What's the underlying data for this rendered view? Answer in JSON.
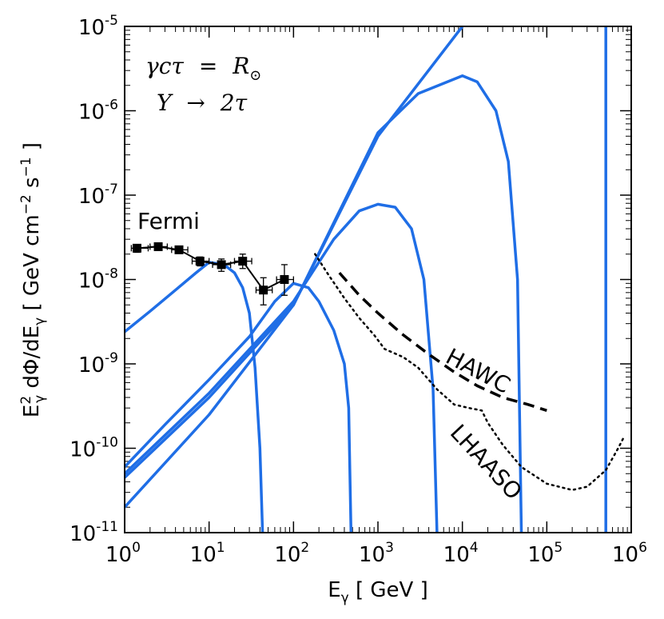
{
  "chart_data": {
    "type": "line",
    "title": "",
    "xlabel": "E_γ [ GeV ]",
    "ylabel": "E²_γ dΦ/dE_γ [ GeV cm⁻² s⁻¹ ]",
    "xscale": "log",
    "yscale": "log",
    "xlim": [
      1,
      1000000
    ],
    "ylim": [
      1e-11,
      1e-05
    ],
    "x_tick_exponents": [
      "0",
      "1",
      "2",
      "3",
      "4",
      "5",
      "6"
    ],
    "y_tick_exponents": [
      "-11",
      "-10",
      "-9",
      "-8",
      "-7",
      "-6",
      "-5"
    ],
    "tick_base": "10",
    "annotations": {
      "line1": {
        "lhs": "γcτ",
        "eq": "=",
        "rhs": "R",
        "sub": "⊙"
      },
      "line2": {
        "lhs": "Y",
        "arrow": "→",
        "rhs": "2τ"
      }
    },
    "labels": {
      "fermi": "Fermi",
      "hawc": "HAWC",
      "lhaaso": "LHAASO"
    },
    "colors": {
      "model": "#1f6ee6",
      "data": "#000000",
      "sensitivity": "#000000"
    },
    "model_series": [
      {
        "name": "model-50GeV",
        "points": [
          [
            1,
            2.4e-09
          ],
          [
            2,
            4.2e-09
          ],
          [
            4,
            7.5e-09
          ],
          [
            7,
            1.2e-08
          ],
          [
            10,
            1.6e-08
          ],
          [
            15,
            1.5e-08
          ],
          [
            20,
            1.2e-08
          ],
          [
            25,
            8e-09
          ],
          [
            30,
            4e-09
          ],
          [
            35,
            9e-10
          ],
          [
            40,
            1e-10
          ],
          [
            43,
            1e-11
          ]
        ]
      },
      {
        "name": "model-500GeV",
        "points": [
          [
            1,
            6e-11
          ],
          [
            3,
            1.9e-10
          ],
          [
            10,
            6.5e-10
          ],
          [
            30,
            2.1e-09
          ],
          [
            60,
            5.5e-09
          ],
          [
            100,
            9e-09
          ],
          [
            150,
            8e-09
          ],
          [
            200,
            5.5e-09
          ],
          [
            300,
            2.5e-09
          ],
          [
            400,
            1e-09
          ],
          [
            450,
            3e-10
          ],
          [
            480,
            1e-11
          ]
        ]
      },
      {
        "name": "model-5TeV",
        "points": [
          [
            1,
            5e-11
          ],
          [
            10,
            4.5e-10
          ],
          [
            100,
            5.5e-09
          ],
          [
            300,
            3e-08
          ],
          [
            600,
            6.5e-08
          ],
          [
            1000,
            7.8e-08
          ],
          [
            1600,
            7.2e-08
          ],
          [
            2500,
            4e-08
          ],
          [
            3500,
            1e-08
          ],
          [
            4500,
            5e-10
          ],
          [
            5000,
            1e-11
          ]
        ]
      },
      {
        "name": "model-50TeV",
        "points": [
          [
            1,
            4.5e-11
          ],
          [
            10,
            4e-10
          ],
          [
            100,
            5e-09
          ],
          [
            1000,
            5.5e-07
          ],
          [
            3000,
            1.6e-06
          ],
          [
            10000,
            2.6e-06
          ],
          [
            15000,
            2.2e-06
          ],
          [
            25000,
            1e-06
          ],
          [
            35000,
            2.5e-07
          ],
          [
            45000,
            1e-08
          ],
          [
            50000,
            1e-11
          ]
        ]
      },
      {
        "name": "model-500TeV",
        "points": [
          [
            1,
            2e-11
          ],
          [
            10,
            2.5e-10
          ],
          [
            100,
            5e-09
          ],
          [
            1000,
            5e-07
          ],
          [
            10000,
            1e-05
          ]
        ]
      }
    ],
    "vertical_line": {
      "name": "model-500TeV-edge",
      "x": 500000
    },
    "fermi_points": [
      {
        "x": 1.4,
        "y": 2.35e-08,
        "xlo": 1.2,
        "xhi": 1.9,
        "ylo": 2.1e-08,
        "yhi": 2.6e-08
      },
      {
        "x": 2.5,
        "y": 2.45e-08,
        "xlo": 2.0,
        "xhi": 3.2,
        "ylo": 2.25e-08,
        "yhi": 2.65e-08
      },
      {
        "x": 4.4,
        "y": 2.25e-08,
        "xlo": 3.6,
        "xhi": 5.6,
        "ylo": 2.05e-08,
        "yhi": 2.45e-08
      },
      {
        "x": 7.8,
        "y": 1.65e-08,
        "xlo": 6.3,
        "xhi": 10,
        "ylo": 1.45e-08,
        "yhi": 1.85e-08
      },
      {
        "x": 14,
        "y": 1.5e-08,
        "xlo": 11,
        "xhi": 18,
        "ylo": 1.25e-08,
        "yhi": 1.75e-08
      },
      {
        "x": 25,
        "y": 1.65e-08,
        "xlo": 20,
        "xhi": 32,
        "ylo": 1.35e-08,
        "yhi": 2e-08
      },
      {
        "x": 44,
        "y": 7.5e-09,
        "xlo": 36,
        "xhi": 56,
        "ylo": 5e-09,
        "yhi": 1.05e-08
      },
      {
        "x": 78,
        "y": 1e-08,
        "xlo": 63,
        "xhi": 100,
        "ylo": 6.5e-09,
        "yhi": 1.5e-08
      }
    ],
    "hawc_curve": [
      [
        350,
        1.2e-08
      ],
      [
        600,
        6.5e-09
      ],
      [
        1000,
        4e-09
      ],
      [
        2000,
        2.2e-09
      ],
      [
        4000,
        1.3e-09
      ],
      [
        8000,
        8e-10
      ],
      [
        15000,
        5.5e-10
      ],
      [
        30000,
        4e-10
      ],
      [
        60000,
        3.3e-10
      ],
      [
        100000,
        2.8e-10
      ]
    ],
    "lhaaso_curve": [
      [
        180,
        2e-08
      ],
      [
        250,
        1.2e-08
      ],
      [
        400,
        6e-09
      ],
      [
        600,
        3.5e-09
      ],
      [
        900,
        2.2e-09
      ],
      [
        1200,
        1.5e-09
      ],
      [
        2000,
        1.2e-09
      ],
      [
        3000,
        9e-10
      ],
      [
        5000,
        5e-10
      ],
      [
        8000,
        3.3e-10
      ],
      [
        12000,
        3e-10
      ],
      [
        17000,
        2.8e-10
      ],
      [
        20000,
        2e-10
      ],
      [
        30000,
        1.1e-10
      ],
      [
        50000,
        6e-11
      ],
      [
        100000,
        3.8e-11
      ],
      [
        200000,
        3.2e-11
      ],
      [
        300000,
        3.5e-11
      ],
      [
        500000,
        5.5e-11
      ],
      [
        700000,
        1e-10
      ],
      [
        800000,
        1.3e-10
      ]
    ]
  }
}
